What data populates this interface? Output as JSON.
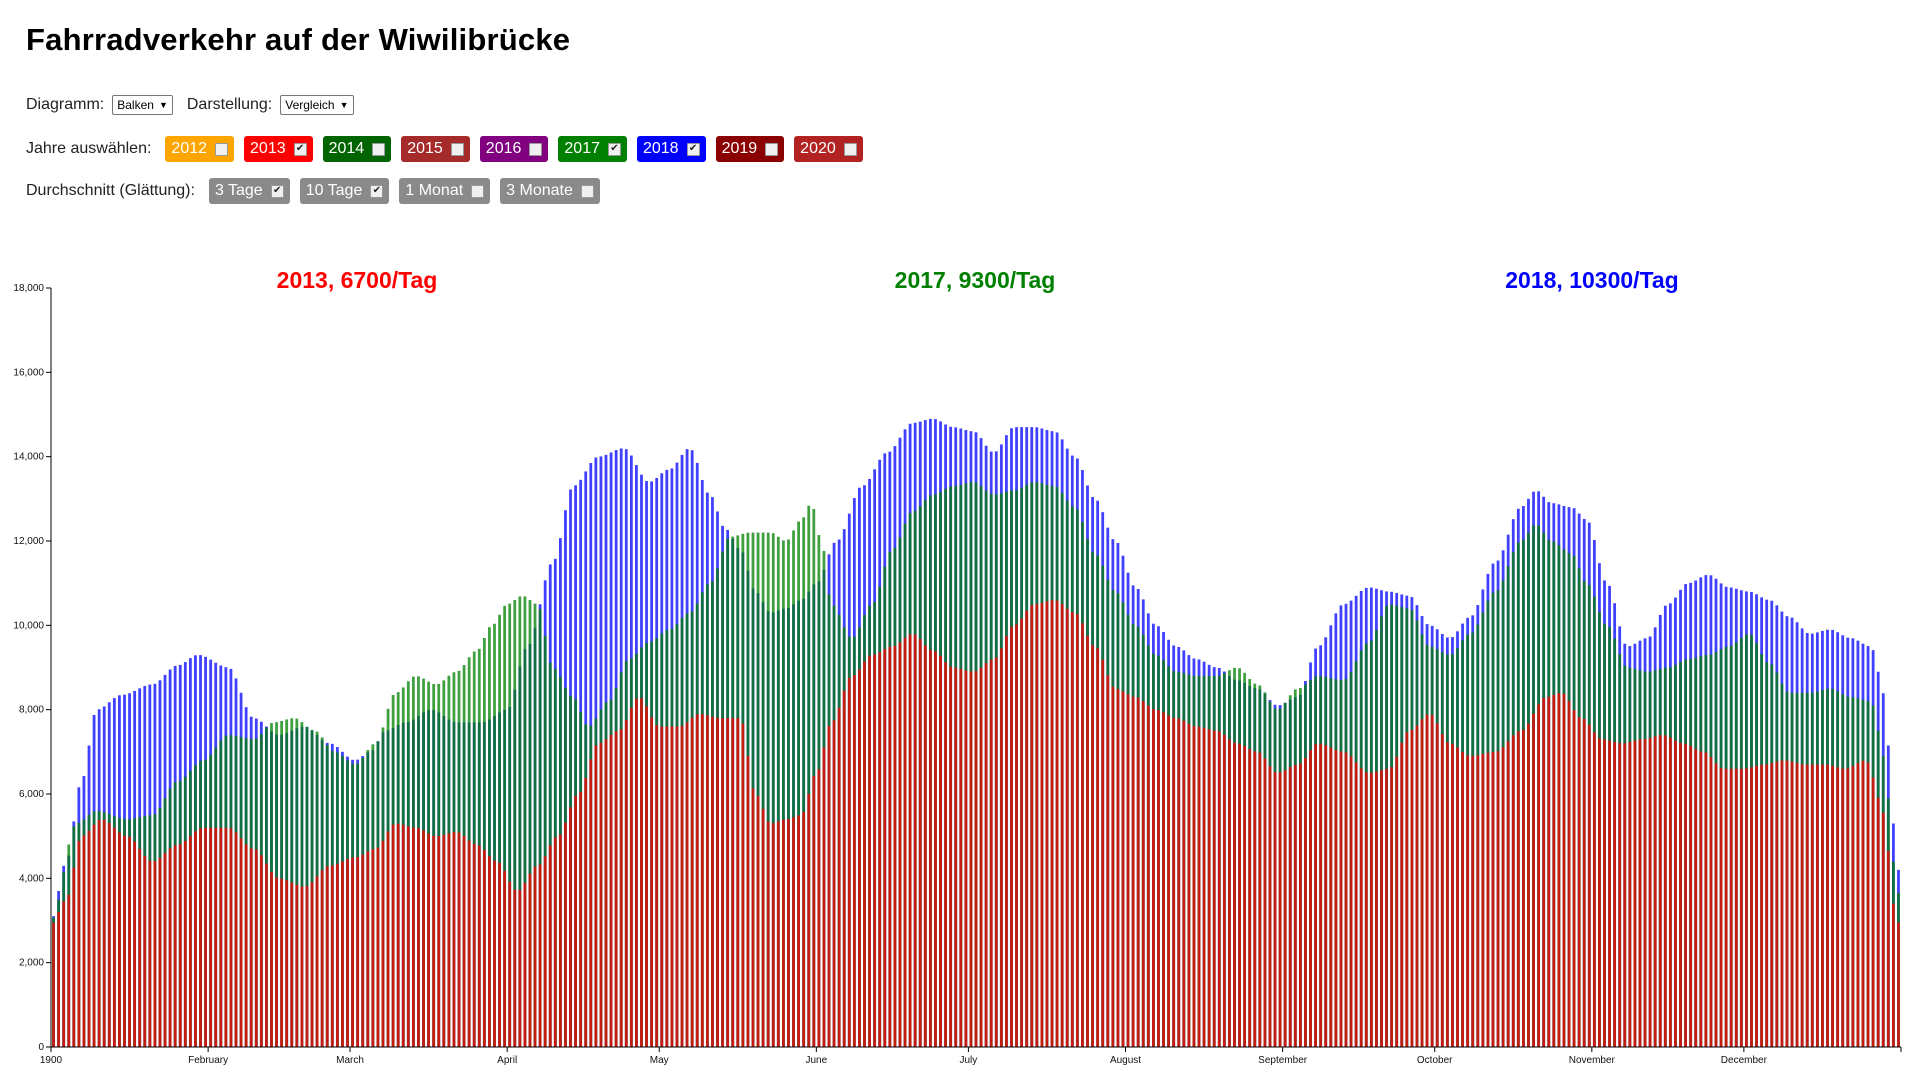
{
  "page": {
    "title": "Fahrradverkehr auf der Wiwilibrücke"
  },
  "controls": {
    "diagram_label": "Diagramm:",
    "diagram_value": "Balken",
    "display_label": "Darstellung:",
    "display_value": "Vergleich",
    "years_label": "Jahre auswählen:",
    "years": [
      {
        "label": "2012",
        "color": "#ffa500",
        "checked": false
      },
      {
        "label": "2013",
        "color": "#ff0000",
        "checked": true
      },
      {
        "label": "2014",
        "color": "#006400",
        "checked": false
      },
      {
        "label": "2015",
        "color": "#a52a2a",
        "checked": false
      },
      {
        "label": "2016",
        "color": "#800080",
        "checked": false
      },
      {
        "label": "2017",
        "color": "#008000",
        "checked": true
      },
      {
        "label": "2018",
        "color": "#0000ff",
        "checked": true
      },
      {
        "label": "2019",
        "color": "#8b0000",
        "checked": false
      },
      {
        "label": "2020",
        "color": "#b22222",
        "checked": false
      }
    ],
    "smoothing_label": "Durchschnitt (Glättung):",
    "smoothing": [
      {
        "label": "3 Tage",
        "checked": true
      },
      {
        "label": "10 Tage",
        "checked": true
      },
      {
        "label": "1 Monat",
        "checked": false
      },
      {
        "label": "3 Monate",
        "checked": false
      }
    ]
  },
  "chart_data": {
    "type": "bar",
    "mode": "overlay comparison",
    "ylim": [
      0,
      18000
    ],
    "y_ticks": [
      "0",
      "2,000",
      "4,000",
      "6,000",
      "8,000",
      "10,000",
      "12,000",
      "14,000",
      "16,000",
      "18,000"
    ],
    "x_ticks": [
      {
        "label": "1900",
        "day": 0
      },
      {
        "label": "February",
        "day": 31
      },
      {
        "label": "March",
        "day": 59
      },
      {
        "label": "April",
        "day": 90
      },
      {
        "label": "May",
        "day": 120
      },
      {
        "label": "June",
        "day": 151
      },
      {
        "label": "July",
        "day": 181
      },
      {
        "label": "August",
        "day": 212
      },
      {
        "label": "September",
        "day": 243
      },
      {
        "label": "October",
        "day": 273
      },
      {
        "label": "November",
        "day": 304
      },
      {
        "label": "December",
        "day": 334
      }
    ],
    "x_range_days": [
      0,
      365
    ],
    "averages": [
      {
        "text": "2013, 6700/Tag",
        "color": "#ff0000",
        "position": "left"
      },
      {
        "text": "2017, 9300/Tag",
        "color": "#008000",
        "position": "center"
      },
      {
        "text": "2018, 10300/Tag",
        "color": "#0000ff",
        "position": "right"
      }
    ],
    "series": [
      {
        "name": "2018",
        "color": "#0000ff",
        "keyframes": [
          [
            0,
            3000
          ],
          [
            3,
            4400
          ],
          [
            6,
            6300
          ],
          [
            9,
            8000
          ],
          [
            14,
            8350
          ],
          [
            20,
            8600
          ],
          [
            25,
            9050
          ],
          [
            29,
            9300
          ],
          [
            35,
            9000
          ],
          [
            40,
            7800
          ],
          [
            45,
            7400
          ],
          [
            50,
            7600
          ],
          [
            55,
            7200
          ],
          [
            60,
            6800
          ],
          [
            63,
            7000
          ],
          [
            66,
            7500
          ],
          [
            70,
            7700
          ],
          [
            75,
            8000
          ],
          [
            80,
            7700
          ],
          [
            85,
            7700
          ],
          [
            90,
            8000
          ],
          [
            94,
            9500
          ],
          [
            99,
            11500
          ],
          [
            103,
            13300
          ],
          [
            108,
            14000
          ],
          [
            113,
            14200
          ],
          [
            118,
            13400
          ],
          [
            122,
            13700
          ],
          [
            126,
            14200
          ],
          [
            130,
            13100
          ],
          [
            133,
            12300
          ],
          [
            136,
            11800
          ],
          [
            139,
            10800
          ],
          [
            142,
            10300
          ],
          [
            145,
            10400
          ],
          [
            148,
            10600
          ],
          [
            151,
            11000
          ],
          [
            155,
            12000
          ],
          [
            160,
            13300
          ],
          [
            165,
            14100
          ],
          [
            170,
            14800
          ],
          [
            174,
            14900
          ],
          [
            178,
            14700
          ],
          [
            182,
            14600
          ],
          [
            186,
            14100
          ],
          [
            190,
            14700
          ],
          [
            194,
            14700
          ],
          [
            198,
            14600
          ],
          [
            202,
            14000
          ],
          [
            206,
            13000
          ],
          [
            210,
            12000
          ],
          [
            214,
            10900
          ],
          [
            218,
            10000
          ],
          [
            222,
            9500
          ],
          [
            226,
            9200
          ],
          [
            230,
            9000
          ],
          [
            234,
            8700
          ],
          [
            238,
            8500
          ],
          [
            242,
            8100
          ],
          [
            246,
            8300
          ],
          [
            250,
            9500
          ],
          [
            255,
            10500
          ],
          [
            260,
            10900
          ],
          [
            264,
            10800
          ],
          [
            268,
            10700
          ],
          [
            272,
            10000
          ],
          [
            276,
            9700
          ],
          [
            280,
            10200
          ],
          [
            285,
            11500
          ],
          [
            290,
            12800
          ],
          [
            293,
            13200
          ],
          [
            296,
            12900
          ],
          [
            300,
            12800
          ],
          [
            303,
            12500
          ],
          [
            307,
            11000
          ],
          [
            311,
            9500
          ],
          [
            315,
            9700
          ],
          [
            319,
            10500
          ],
          [
            323,
            11000
          ],
          [
            327,
            11200
          ],
          [
            331,
            10900
          ],
          [
            335,
            10800
          ],
          [
            339,
            10600
          ],
          [
            343,
            10200
          ],
          [
            347,
            9800
          ],
          [
            351,
            9900
          ],
          [
            355,
            9700
          ],
          [
            359,
            9500
          ],
          [
            362,
            8300
          ],
          [
            363,
            6000
          ],
          [
            364,
            4600
          ],
          [
            365,
            3800
          ]
        ]
      },
      {
        "name": "2017",
        "color": "#008000",
        "keyframes": [
          [
            0,
            3000
          ],
          [
            5,
            5300
          ],
          [
            9,
            5600
          ],
          [
            15,
            5400
          ],
          [
            20,
            5500
          ],
          [
            25,
            6300
          ],
          [
            30,
            6800
          ],
          [
            35,
            7400
          ],
          [
            40,
            7300
          ],
          [
            44,
            7700
          ],
          [
            48,
            7800
          ],
          [
            52,
            7500
          ],
          [
            56,
            7000
          ],
          [
            60,
            6700
          ],
          [
            64,
            7200
          ],
          [
            68,
            8400
          ],
          [
            72,
            8800
          ],
          [
            76,
            8600
          ],
          [
            80,
            8900
          ],
          [
            84,
            9400
          ],
          [
            87,
            10000
          ],
          [
            90,
            10500
          ],
          [
            93,
            10700
          ],
          [
            96,
            10500
          ],
          [
            99,
            9000
          ],
          [
            103,
            8300
          ],
          [
            106,
            7600
          ],
          [
            110,
            8200
          ],
          [
            114,
            9200
          ],
          [
            118,
            9600
          ],
          [
            122,
            9900
          ],
          [
            126,
            10300
          ],
          [
            130,
            11000
          ],
          [
            134,
            12100
          ],
          [
            138,
            12200
          ],
          [
            142,
            12200
          ],
          [
            145,
            12000
          ],
          [
            148,
            12500
          ],
          [
            150,
            12900
          ],
          [
            152,
            12000
          ],
          [
            154,
            10500
          ],
          [
            158,
            9700
          ],
          [
            162,
            10500
          ],
          [
            166,
            11800
          ],
          [
            170,
            12700
          ],
          [
            174,
            13100
          ],
          [
            178,
            13300
          ],
          [
            182,
            13400
          ],
          [
            186,
            13100
          ],
          [
            190,
            13200
          ],
          [
            194,
            13400
          ],
          [
            198,
            13300
          ],
          [
            202,
            12800
          ],
          [
            206,
            11700
          ],
          [
            210,
            10800
          ],
          [
            214,
            10000
          ],
          [
            218,
            9300
          ],
          [
            222,
            8900
          ],
          [
            226,
            8800
          ],
          [
            230,
            8800
          ],
          [
            234,
            9000
          ],
          [
            238,
            8600
          ],
          [
            242,
            8000
          ],
          [
            246,
            8500
          ],
          [
            250,
            8800
          ],
          [
            255,
            8700
          ],
          [
            260,
            9600
          ],
          [
            264,
            10500
          ],
          [
            268,
            10400
          ],
          [
            272,
            9500
          ],
          [
            276,
            9300
          ],
          [
            280,
            9800
          ],
          [
            285,
            10800
          ],
          [
            290,
            12000
          ],
          [
            293,
            12400
          ],
          [
            296,
            12000
          ],
          [
            300,
            11700
          ],
          [
            303,
            11000
          ],
          [
            307,
            10000
          ],
          [
            311,
            9000
          ],
          [
            315,
            8900
          ],
          [
            319,
            9000
          ],
          [
            323,
            9200
          ],
          [
            327,
            9300
          ],
          [
            331,
            9500
          ],
          [
            335,
            9800
          ],
          [
            339,
            9100
          ],
          [
            343,
            8400
          ],
          [
            347,
            8400
          ],
          [
            351,
            8500
          ],
          [
            355,
            8300
          ],
          [
            359,
            8200
          ],
          [
            362,
            6800
          ],
          [
            363,
            5000
          ],
          [
            364,
            3800
          ],
          [
            365,
            3500
          ]
        ]
      },
      {
        "name": "2013",
        "color": "#ff0000",
        "keyframes": [
          [
            0,
            2900
          ],
          [
            3,
            3500
          ],
          [
            6,
            5000
          ],
          [
            10,
            5400
          ],
          [
            15,
            5000
          ],
          [
            20,
            4400
          ],
          [
            25,
            4800
          ],
          [
            30,
            5200
          ],
          [
            35,
            5200
          ],
          [
            40,
            4700
          ],
          [
            45,
            4000
          ],
          [
            50,
            3800
          ],
          [
            55,
            4300
          ],
          [
            60,
            4500
          ],
          [
            64,
            4700
          ],
          [
            68,
            5300
          ],
          [
            72,
            5200
          ],
          [
            76,
            5000
          ],
          [
            80,
            5100
          ],
          [
            84,
            4800
          ],
          [
            88,
            4400
          ],
          [
            92,
            3700
          ],
          [
            96,
            4300
          ],
          [
            100,
            5000
          ],
          [
            104,
            6000
          ],
          [
            108,
            7200
          ],
          [
            112,
            7500
          ],
          [
            116,
            8300
          ],
          [
            120,
            7600
          ],
          [
            124,
            7600
          ],
          [
            128,
            7900
          ],
          [
            132,
            7800
          ],
          [
            136,
            7800
          ],
          [
            139,
            6000
          ],
          [
            142,
            5300
          ],
          [
            145,
            5400
          ],
          [
            148,
            5500
          ],
          [
            151,
            6500
          ],
          [
            154,
            7700
          ],
          [
            158,
            8800
          ],
          [
            162,
            9300
          ],
          [
            166,
            9500
          ],
          [
            170,
            9800
          ],
          [
            174,
            9400
          ],
          [
            178,
            9000
          ],
          [
            182,
            8900
          ],
          [
            186,
            9200
          ],
          [
            190,
            10000
          ],
          [
            194,
            10500
          ],
          [
            198,
            10600
          ],
          [
            202,
            10300
          ],
          [
            206,
            9500
          ],
          [
            210,
            8500
          ],
          [
            214,
            8300
          ],
          [
            218,
            8000
          ],
          [
            222,
            7800
          ],
          [
            226,
            7600
          ],
          [
            230,
            7500
          ],
          [
            234,
            7200
          ],
          [
            238,
            7000
          ],
          [
            242,
            6500
          ],
          [
            246,
            6700
          ],
          [
            250,
            7200
          ],
          [
            255,
            7000
          ],
          [
            260,
            6500
          ],
          [
            264,
            6600
          ],
          [
            268,
            7500
          ],
          [
            272,
            7900
          ],
          [
            276,
            7200
          ],
          [
            280,
            6900
          ],
          [
            285,
            7000
          ],
          [
            290,
            7500
          ],
          [
            295,
            8300
          ],
          [
            298,
            8400
          ],
          [
            302,
            7800
          ],
          [
            306,
            7300
          ],
          [
            310,
            7200
          ],
          [
            314,
            7300
          ],
          [
            318,
            7400
          ],
          [
            322,
            7200
          ],
          [
            326,
            7000
          ],
          [
            330,
            6600
          ],
          [
            334,
            6600
          ],
          [
            338,
            6700
          ],
          [
            342,
            6800
          ],
          [
            346,
            6700
          ],
          [
            350,
            6700
          ],
          [
            354,
            6600
          ],
          [
            358,
            6800
          ],
          [
            362,
            5500
          ],
          [
            363,
            3800
          ],
          [
            364,
            3000
          ],
          [
            365,
            2900
          ]
        ]
      }
    ]
  }
}
